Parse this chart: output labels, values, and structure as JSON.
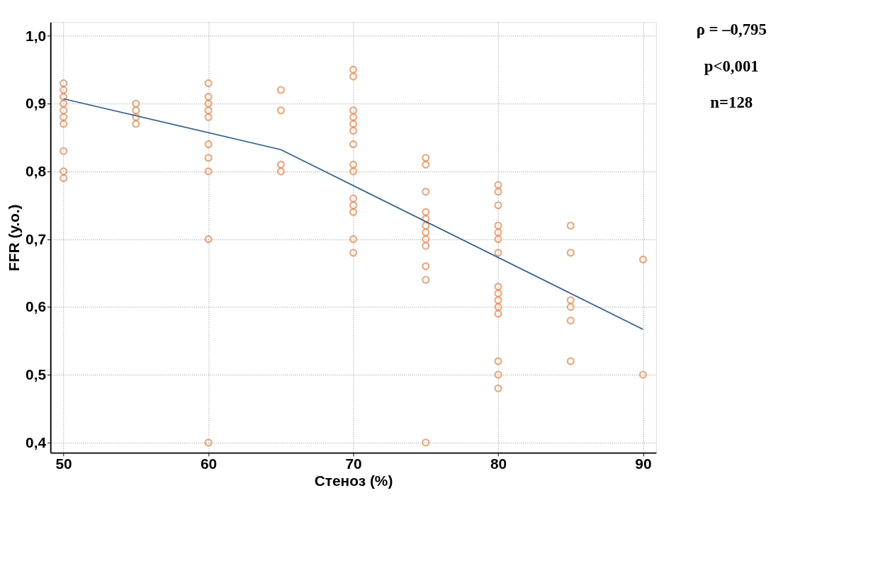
{
  "chart_data": {
    "type": "scatter",
    "xlabel": "Стеноз (%)",
    "ylabel": "FFR (у.о.)",
    "xlim": [
      49.1,
      90.9
    ],
    "ylim": [
      0.385,
      1.02
    ],
    "xticks": [
      50,
      60,
      70,
      80,
      90
    ],
    "yticks": [
      {
        "value": 0.4,
        "label": "0,4"
      },
      {
        "value": 0.5,
        "label": "0,5"
      },
      {
        "value": 0.6,
        "label": "0,6"
      },
      {
        "value": 0.7,
        "label": "0,7"
      },
      {
        "value": 0.8,
        "label": "0,8"
      },
      {
        "value": 0.9,
        "label": "0,9"
      },
      {
        "value": 1.0,
        "label": "1,0"
      }
    ],
    "grid": true,
    "annotations": [
      "ρ = –0,795",
      "p<0,001",
      "n=128"
    ],
    "series": [
      {
        "type": "scatter",
        "marker": "circle",
        "color": "#f08040",
        "x": [
          50,
          50,
          50,
          50,
          50,
          50,
          50,
          50,
          50,
          50,
          55,
          55,
          55,
          55,
          60,
          60,
          60,
          60,
          60,
          60,
          60,
          60,
          60,
          60,
          65,
          65,
          65,
          65,
          70,
          70,
          70,
          70,
          70,
          70,
          70,
          70,
          70,
          70,
          70,
          70,
          70,
          70,
          75,
          75,
          75,
          75,
          75,
          75,
          75,
          75,
          75,
          75,
          75,
          75,
          80,
          80,
          80,
          80,
          80,
          80,
          80,
          80,
          80,
          80,
          80,
          80,
          80,
          80,
          80,
          85,
          85,
          85,
          85,
          85,
          85,
          90,
          90
        ],
        "values": [
          0.93,
          0.92,
          0.91,
          0.9,
          0.89,
          0.88,
          0.87,
          0.83,
          0.8,
          0.79,
          0.9,
          0.89,
          0.88,
          0.87,
          0.93,
          0.91,
          0.9,
          0.89,
          0.88,
          0.84,
          0.82,
          0.8,
          0.7,
          0.4,
          0.92,
          0.89,
          0.81,
          0.8,
          0.95,
          0.94,
          0.89,
          0.88,
          0.87,
          0.86,
          0.84,
          0.81,
          0.8,
          0.76,
          0.75,
          0.74,
          0.7,
          0.68,
          0.82,
          0.81,
          0.77,
          0.74,
          0.73,
          0.72,
          0.71,
          0.7,
          0.69,
          0.66,
          0.64,
          0.4,
          0.78,
          0.77,
          0.75,
          0.72,
          0.71,
          0.7,
          0.68,
          0.63,
          0.62,
          0.61,
          0.6,
          0.59,
          0.52,
          0.5,
          0.48,
          0.72,
          0.68,
          0.61,
          0.6,
          0.58,
          0.52,
          0.67,
          0.5
        ]
      },
      {
        "type": "line",
        "color": "#2a5fa0",
        "x": [
          50,
          65,
          90
        ],
        "values": [
          0.907,
          0.832,
          0.567
        ]
      }
    ]
  }
}
